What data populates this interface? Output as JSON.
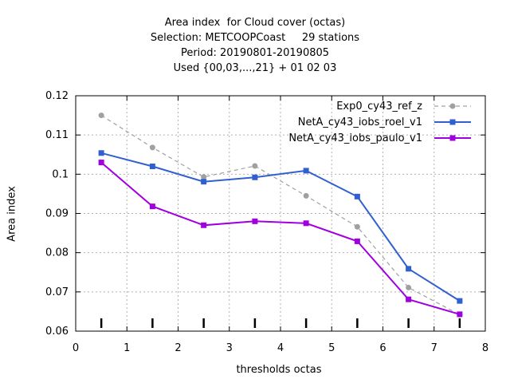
{
  "chart_data": {
    "type": "line",
    "title_lines": [
      "Area index  for Cloud cover (octas)",
      "Selection: METCOOPCoast     29 stations",
      "Period: 20190801-20190805",
      "Used {00,03,...,21} + 01 02 03"
    ],
    "xlabel": "thresholds octas",
    "ylabel": "Area index",
    "xlim": [
      0,
      8
    ],
    "ylim": [
      0.06,
      0.12
    ],
    "xticks": [
      "0",
      "1",
      "2",
      "3",
      "4",
      "5",
      "6",
      "7",
      "8"
    ],
    "yticks": [
      "0.06",
      "0.07",
      "0.08",
      "0.09",
      "0.1",
      "0.11",
      "0.12"
    ],
    "grid": true,
    "legend_position": "top-right",
    "x": [
      0.5,
      1.5,
      2.5,
      3.5,
      4.5,
      5.5,
      6.5,
      7.5
    ],
    "series": [
      {
        "name": "Exp0_cy43_ref_z",
        "color": "#a0a0a0",
        "dashed": true,
        "values": [
          0.115,
          0.1068,
          0.0993,
          0.1021,
          0.0945,
          0.0866,
          0.0711,
          0.0642
        ]
      },
      {
        "name": "NetA_cy43_iobs_roel_v1",
        "color": "#3060d0",
        "dashed": false,
        "values": [
          0.1054,
          0.102,
          0.0981,
          0.0992,
          0.1009,
          0.0943,
          0.0759,
          0.0677
        ]
      },
      {
        "name": "NetA_cy43_iobs_paulo_v1",
        "color": "#a000e0",
        "dashed": false,
        "values": [
          0.103,
          0.0918,
          0.087,
          0.088,
          0.0875,
          0.0829,
          0.0681,
          0.0643
        ]
      }
    ]
  }
}
